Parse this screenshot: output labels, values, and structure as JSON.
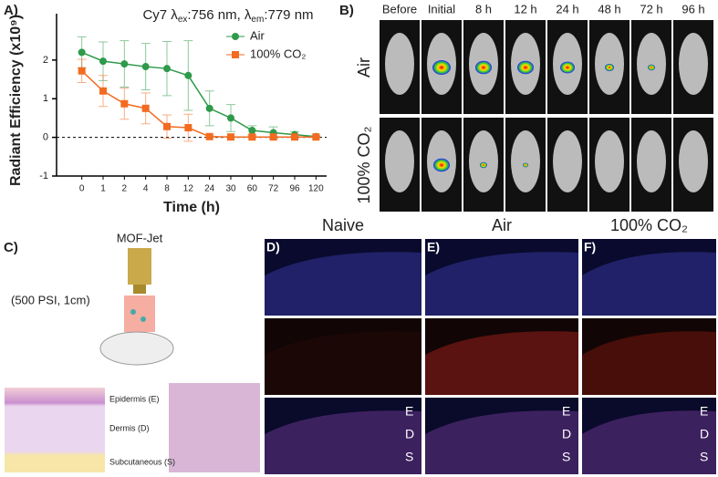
{
  "chart_data": {
    "type": "line",
    "panel_label": "A)",
    "title": [
      "Cy7 λ",
      "ex",
      ":756 nm, λ",
      "em",
      ":779 nm"
    ],
    "x_label": "Time (h)",
    "y_label": "Radiant Efficiency (x10⁹)",
    "categories": [
      "0",
      "1",
      "2",
      "4",
      "8",
      "12",
      "24",
      "30",
      "60",
      "72",
      "96",
      "120"
    ],
    "series": [
      {
        "name": "Air",
        "color": "#2e9a4a",
        "values": [
          2.2,
          1.97,
          1.9,
          1.83,
          1.78,
          1.6,
          0.75,
          0.5,
          0.18,
          0.12,
          0.07,
          0.02
        ],
        "errors": [
          0.4,
          0.5,
          0.6,
          0.6,
          0.7,
          0.9,
          0.45,
          0.35,
          0.12,
          0.15,
          0.08,
          0.02
        ]
      },
      {
        "name": "100% CO₂",
        "color": "#f26b21",
        "values": [
          1.72,
          1.2,
          0.87,
          0.75,
          0.28,
          0.25,
          0.02,
          0.01,
          0.01,
          0.01,
          0.01,
          0.01
        ],
        "errors": [
          0.3,
          0.4,
          0.4,
          0.4,
          0.3,
          0.35,
          0.02,
          0.01,
          0.01,
          0.01,
          0.01,
          0.01
        ]
      }
    ],
    "ylim": [
      -1,
      3.2
    ],
    "yticks": [
      -1,
      0,
      1,
      2
    ]
  },
  "panel_b": {
    "label": "B)",
    "columns": [
      "Before",
      "Initial",
      "8 h",
      "12 h",
      "24 h",
      "48 h",
      "72 h",
      "96 h"
    ],
    "rows": [
      "Air",
      "100% CO₂"
    ]
  },
  "panel_c": {
    "label": "C)",
    "device": "MOF-Jet",
    "setting": "(500 PSI, 1cm)",
    "layers": [
      "Epidermis (E)",
      "Dermis (D)",
      "Subcutaneous (S)"
    ]
  },
  "panels_def": {
    "headers": [
      "Naive",
      "Air",
      "100% CO₂"
    ],
    "labels": [
      "D)",
      "E)",
      "F)"
    ],
    "layers": [
      "E",
      "D",
      "S"
    ]
  }
}
